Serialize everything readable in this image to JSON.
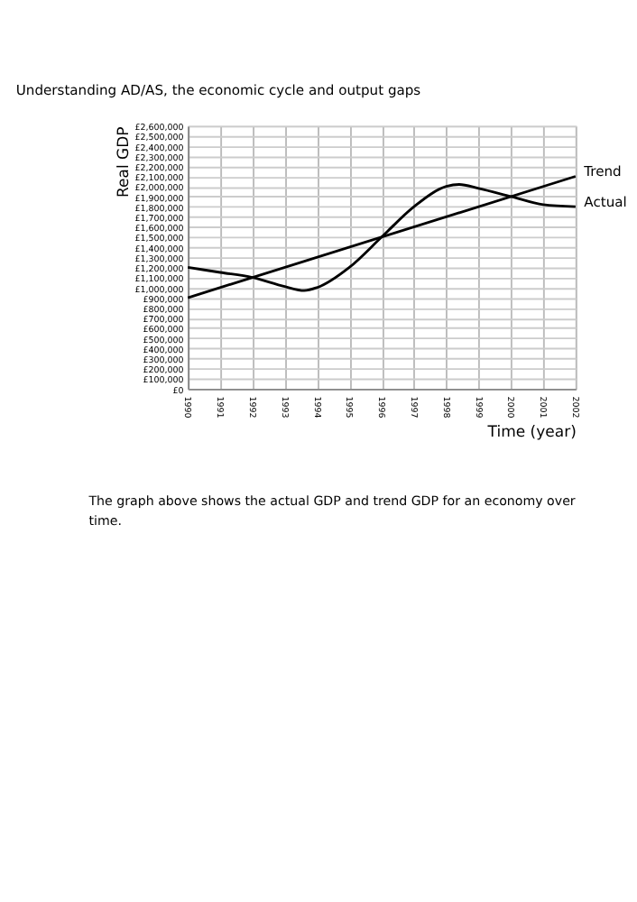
{
  "chart_data": {
    "type": "line",
    "title": "Understanding AD/AS, the economic cycle and output gaps",
    "xlabel": "Time (year)",
    "ylabel": "Real GDP",
    "x": [
      1990,
      1991,
      1992,
      1993,
      1993.6,
      1994,
      1995,
      1996,
      1997,
      1998,
      1998.4,
      1999,
      2000,
      2001,
      2002
    ],
    "series": [
      {
        "name": "Trend",
        "color": "#000000",
        "x": [
          1990,
          2002
        ],
        "values": [
          900000,
          2100000
        ]
      },
      {
        "name": "Actual",
        "color": "#000000",
        "values": [
          1200000,
          1150000,
          1100000,
          1010000,
          970000,
          1000000,
          1200000,
          1500000,
          1800000,
          2000000,
          2020000,
          1980000,
          1900000,
          1820000,
          1800000
        ]
      }
    ],
    "xlim": [
      1990,
      2002
    ],
    "xticks": [
      1990,
      1991,
      1992,
      1993,
      1994,
      1995,
      1996,
      1997,
      1998,
      1999,
      2000,
      2001,
      2002
    ],
    "ylim": [
      0,
      2600000
    ],
    "yticks": [
      {
        "value": 0,
        "label": "£0"
      },
      {
        "value": 100000,
        "label": "£100,000"
      },
      {
        "value": 200000,
        "label": "£200,000"
      },
      {
        "value": 300000,
        "label": "£300,000"
      },
      {
        "value": 400000,
        "label": "£400,000"
      },
      {
        "value": 500000,
        "label": "£500,000"
      },
      {
        "value": 600000,
        "label": "£600,000"
      },
      {
        "value": 700000,
        "label": "£700,000"
      },
      {
        "value": 800000,
        "label": "£800,000"
      },
      {
        "value": 900000,
        "label": "£900,000"
      },
      {
        "value": 1000000,
        "label": "£1,000,000"
      },
      {
        "value": 1100000,
        "label": "£1,100,000"
      },
      {
        "value": 1200000,
        "label": "£1,200,000"
      },
      {
        "value": 1300000,
        "label": "£1,300,000"
      },
      {
        "value": 1400000,
        "label": "£1,400,000"
      },
      {
        "value": 1500000,
        "label": "£1,500,000"
      },
      {
        "value": 1600000,
        "label": "£1,600,000"
      },
      {
        "value": 1700000,
        "label": "£1,700,000"
      },
      {
        "value": 1800000,
        "label": "£1,800,000"
      },
      {
        "value": 1900000,
        "label": "£1,900,000"
      },
      {
        "value": 2000000,
        "label": "£2,000,000"
      },
      {
        "value": 2100000,
        "label": "£2,100,000"
      },
      {
        "value": 2200000,
        "label": "£2,200,000"
      },
      {
        "value": 2300000,
        "label": "£2,300,000"
      },
      {
        "value": 2400000,
        "label": "£2,400,000"
      },
      {
        "value": 2500000,
        "label": "£2,500,000"
      },
      {
        "value": 2600000,
        "label": "£2,600,000"
      }
    ],
    "grid": true,
    "marker": "none",
    "line_style": "solid",
    "annotations": [
      "The graph above shows the actual GDP and trend GDP for an economy over time."
    ]
  }
}
